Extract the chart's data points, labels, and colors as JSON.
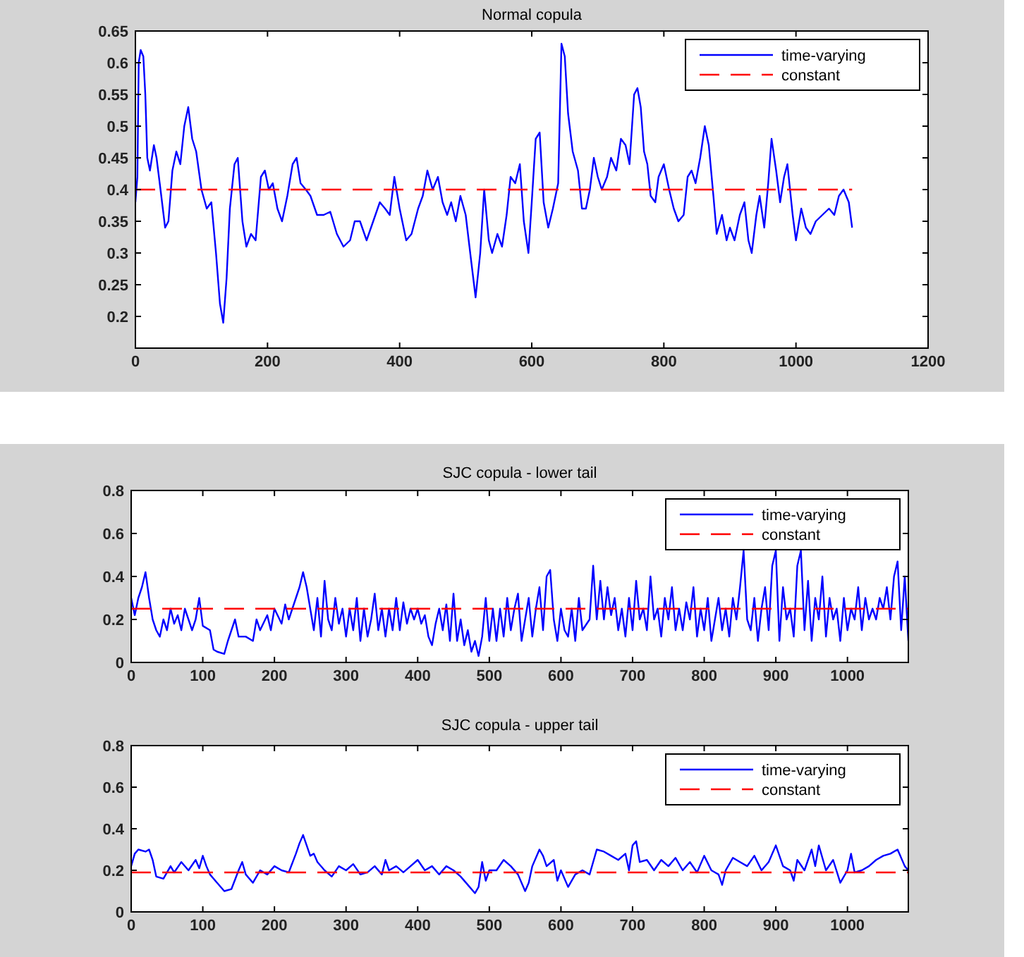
{
  "chart_data": [
    {
      "type": "line",
      "title": "Normal copula",
      "xlim": [
        0,
        1200
      ],
      "xticks": [
        0,
        200,
        400,
        600,
        800,
        1000,
        1200
      ],
      "ylim": [
        0.15,
        0.65
      ],
      "yticks": [
        0.2,
        0.25,
        0.3,
        0.35,
        0.4,
        0.45,
        0.5,
        0.55,
        0.6,
        0.65
      ],
      "legend": "top right",
      "series": [
        {
          "name": "time-varying",
          "color": "#0000ff",
          "line_style": "solid",
          "x": [
            0,
            3,
            5,
            8,
            12,
            15,
            18,
            22,
            28,
            32,
            38,
            45,
            50,
            56,
            62,
            68,
            74,
            80,
            86,
            92,
            100,
            108,
            115,
            122,
            128,
            133,
            138,
            143,
            150,
            155,
            162,
            168,
            175,
            182,
            190,
            196,
            202,
            208,
            215,
            222,
            230,
            238,
            244,
            250,
            258,
            265,
            275,
            285,
            295,
            305,
            315,
            325,
            332,
            340,
            350,
            360,
            370,
            378,
            385,
            392,
            400,
            410,
            418,
            428,
            435,
            442,
            450,
            458,
            465,
            472,
            478,
            485,
            492,
            500,
            508,
            515,
            522,
            528,
            535,
            540,
            548,
            555,
            562,
            568,
            575,
            582,
            588,
            595,
            600,
            606,
            612,
            618,
            625,
            632,
            640,
            645,
            650,
            655,
            662,
            670,
            676,
            682,
            688,
            694,
            700,
            706,
            714,
            720,
            728,
            735,
            742,
            748,
            755,
            760,
            765,
            770,
            775,
            780,
            787,
            792,
            800,
            808,
            815,
            822,
            830,
            836,
            842,
            848,
            855,
            862,
            868,
            875,
            880,
            888,
            895,
            900,
            907,
            915,
            922,
            928,
            933,
            940,
            945,
            952,
            958,
            963,
            970,
            976,
            982,
            987,
            995,
            1000,
            1008,
            1015,
            1022,
            1030,
            1040,
            1050,
            1058,
            1065,
            1072,
            1080,
            1085
          ],
          "values": [
            0.38,
            0.42,
            0.6,
            0.62,
            0.61,
            0.55,
            0.45,
            0.43,
            0.47,
            0.45,
            0.4,
            0.34,
            0.35,
            0.43,
            0.46,
            0.44,
            0.5,
            0.53,
            0.48,
            0.46,
            0.4,
            0.37,
            0.38,
            0.3,
            0.22,
            0.19,
            0.26,
            0.37,
            0.44,
            0.45,
            0.35,
            0.31,
            0.33,
            0.32,
            0.42,
            0.43,
            0.4,
            0.41,
            0.37,
            0.35,
            0.39,
            0.44,
            0.45,
            0.41,
            0.4,
            0.39,
            0.36,
            0.36,
            0.365,
            0.33,
            0.31,
            0.32,
            0.35,
            0.35,
            0.32,
            0.35,
            0.38,
            0.37,
            0.36,
            0.42,
            0.37,
            0.32,
            0.33,
            0.37,
            0.39,
            0.43,
            0.4,
            0.42,
            0.38,
            0.36,
            0.38,
            0.35,
            0.39,
            0.36,
            0.29,
            0.23,
            0.3,
            0.4,
            0.32,
            0.3,
            0.33,
            0.31,
            0.36,
            0.42,
            0.41,
            0.44,
            0.35,
            0.3,
            0.38,
            0.48,
            0.49,
            0.38,
            0.34,
            0.37,
            0.41,
            0.63,
            0.61,
            0.52,
            0.46,
            0.43,
            0.37,
            0.37,
            0.4,
            0.45,
            0.42,
            0.4,
            0.42,
            0.45,
            0.43,
            0.48,
            0.47,
            0.44,
            0.55,
            0.56,
            0.53,
            0.46,
            0.44,
            0.39,
            0.38,
            0.42,
            0.44,
            0.4,
            0.37,
            0.35,
            0.36,
            0.42,
            0.43,
            0.41,
            0.45,
            0.5,
            0.47,
            0.39,
            0.33,
            0.36,
            0.32,
            0.34,
            0.32,
            0.36,
            0.38,
            0.32,
            0.3,
            0.36,
            0.39,
            0.34,
            0.41,
            0.48,
            0.43,
            0.38,
            0.42,
            0.44,
            0.36,
            0.32,
            0.37,
            0.34,
            0.33,
            0.35,
            0.36,
            0.37,
            0.36,
            0.39,
            0.4,
            0.38,
            0.34
          ]
        },
        {
          "name": "constant",
          "color": "#ff0000",
          "line_style": "dashed",
          "x": [
            0,
            1085
          ],
          "values": [
            0.4,
            0.4
          ]
        }
      ]
    },
    {
      "type": "line",
      "title": "SJC copula - lower tail",
      "xlim": [
        0,
        1085
      ],
      "xticks": [
        0,
        100,
        200,
        300,
        400,
        500,
        600,
        700,
        800,
        900,
        1000
      ],
      "ylim": [
        0,
        0.8
      ],
      "yticks": [
        0,
        0.2,
        0.4,
        0.6,
        0.8
      ],
      "legend": "top right",
      "series": [
        {
          "name": "time-varying",
          "color": "#0000ff",
          "line_style": "solid",
          "x": [
            0,
            5,
            10,
            15,
            20,
            25,
            30,
            35,
            40,
            45,
            50,
            55,
            60,
            65,
            70,
            75,
            80,
            85,
            90,
            95,
            100,
            110,
            115,
            120,
            130,
            135,
            140,
            145,
            150,
            160,
            170,
            175,
            180,
            190,
            195,
            200,
            210,
            215,
            220,
            225,
            235,
            240,
            245,
            250,
            255,
            260,
            265,
            270,
            275,
            280,
            285,
            290,
            295,
            300,
            305,
            310,
            315,
            320,
            325,
            330,
            335,
            340,
            345,
            350,
            355,
            360,
            365,
            370,
            375,
            380,
            385,
            390,
            395,
            400,
            405,
            410,
            415,
            420,
            425,
            430,
            435,
            440,
            445,
            450,
            455,
            460,
            465,
            470,
            475,
            480,
            485,
            490,
            495,
            500,
            505,
            510,
            515,
            520,
            525,
            530,
            535,
            540,
            545,
            550,
            555,
            560,
            565,
            570,
            575,
            580,
            585,
            590,
            595,
            600,
            605,
            610,
            615,
            620,
            625,
            630,
            640,
            645,
            650,
            655,
            660,
            665,
            670,
            675,
            680,
            685,
            690,
            695,
            700,
            705,
            710,
            715,
            720,
            725,
            730,
            735,
            740,
            745,
            750,
            755,
            760,
            765,
            770,
            775,
            780,
            785,
            790,
            795,
            800,
            805,
            810,
            815,
            820,
            825,
            830,
            835,
            840,
            845,
            850,
            855,
            860,
            865,
            870,
            875,
            880,
            885,
            890,
            895,
            900,
            905,
            910,
            915,
            920,
            925,
            930,
            935,
            940,
            945,
            950,
            955,
            960,
            965,
            970,
            975,
            980,
            985,
            990,
            995,
            1000,
            1005,
            1010,
            1015,
            1020,
            1025,
            1030,
            1035,
            1040,
            1045,
            1050,
            1055,
            1060,
            1065,
            1070,
            1075,
            1080,
            1085
          ],
          "values": [
            0.3,
            0.22,
            0.3,
            0.35,
            0.42,
            0.3,
            0.2,
            0.15,
            0.12,
            0.2,
            0.15,
            0.25,
            0.18,
            0.22,
            0.15,
            0.25,
            0.2,
            0.15,
            0.2,
            0.3,
            0.17,
            0.15,
            0.06,
            0.05,
            0.04,
            0.1,
            0.15,
            0.2,
            0.12,
            0.12,
            0.1,
            0.2,
            0.15,
            0.22,
            0.15,
            0.25,
            0.18,
            0.27,
            0.2,
            0.25,
            0.35,
            0.42,
            0.35,
            0.25,
            0.15,
            0.3,
            0.12,
            0.38,
            0.2,
            0.15,
            0.3,
            0.18,
            0.25,
            0.12,
            0.25,
            0.15,
            0.3,
            0.1,
            0.25,
            0.12,
            0.2,
            0.32,
            0.15,
            0.25,
            0.12,
            0.25,
            0.15,
            0.3,
            0.15,
            0.28,
            0.18,
            0.25,
            0.2,
            0.25,
            0.18,
            0.22,
            0.12,
            0.08,
            0.18,
            0.25,
            0.15,
            0.27,
            0.1,
            0.32,
            0.1,
            0.2,
            0.08,
            0.15,
            0.05,
            0.1,
            0.03,
            0.12,
            0.3,
            0.1,
            0.25,
            0.1,
            0.25,
            0.12,
            0.3,
            0.15,
            0.25,
            0.32,
            0.1,
            0.2,
            0.3,
            0.12,
            0.25,
            0.35,
            0.15,
            0.4,
            0.43,
            0.2,
            0.1,
            0.25,
            0.15,
            0.12,
            0.25,
            0.1,
            0.3,
            0.15,
            0.2,
            0.45,
            0.2,
            0.38,
            0.2,
            0.35,
            0.22,
            0.3,
            0.15,
            0.25,
            0.12,
            0.3,
            0.15,
            0.38,
            0.2,
            0.25,
            0.15,
            0.4,
            0.2,
            0.25,
            0.12,
            0.3,
            0.2,
            0.35,
            0.15,
            0.25,
            0.15,
            0.28,
            0.2,
            0.35,
            0.12,
            0.25,
            0.15,
            0.3,
            0.1,
            0.2,
            0.3,
            0.15,
            0.25,
            0.12,
            0.3,
            0.2,
            0.35,
            0.52,
            0.2,
            0.15,
            0.3,
            0.1,
            0.25,
            0.35,
            0.15,
            0.45,
            0.52,
            0.1,
            0.35,
            0.2,
            0.25,
            0.12,
            0.45,
            0.52,
            0.15,
            0.38,
            0.1,
            0.3,
            0.2,
            0.4,
            0.12,
            0.3,
            0.2,
            0.25,
            0.1,
            0.3,
            0.15,
            0.25,
            0.2,
            0.35,
            0.15,
            0.3,
            0.2,
            0.25,
            0.2,
            0.3,
            0.25,
            0.35,
            0.2,
            0.4,
            0.47,
            0.15,
            0.4,
            0.1
          ]
        },
        {
          "name": "constant",
          "color": "#ff0000",
          "line_style": "dashed",
          "x": [
            0,
            1085
          ],
          "values": [
            0.25,
            0.25
          ]
        }
      ]
    },
    {
      "type": "line",
      "title": "SJC copula - upper tail",
      "xlim": [
        0,
        1085
      ],
      "xticks": [
        0,
        100,
        200,
        300,
        400,
        500,
        600,
        700,
        800,
        900,
        1000
      ],
      "ylim": [
        0,
        0.8
      ],
      "yticks": [
        0,
        0.2,
        0.4,
        0.6,
        0.8
      ],
      "legend": "top right",
      "series": [
        {
          "name": "time-varying",
          "color": "#0000ff",
          "line_style": "solid",
          "x": [
            0,
            5,
            10,
            20,
            25,
            30,
            35,
            45,
            55,
            60,
            70,
            80,
            90,
            95,
            100,
            105,
            110,
            120,
            130,
            140,
            150,
            155,
            160,
            170,
            180,
            190,
            200,
            210,
            220,
            230,
            235,
            240,
            245,
            250,
            255,
            260,
            270,
            280,
            290,
            300,
            310,
            320,
            330,
            340,
            350,
            355,
            360,
            370,
            380,
            390,
            400,
            410,
            420,
            430,
            440,
            450,
            460,
            470,
            480,
            485,
            490,
            495,
            500,
            510,
            520,
            530,
            540,
            550,
            555,
            560,
            570,
            575,
            580,
            590,
            595,
            600,
            610,
            620,
            630,
            640,
            650,
            660,
            670,
            680,
            690,
            695,
            700,
            705,
            710,
            720,
            730,
            740,
            750,
            760,
            770,
            780,
            790,
            800,
            810,
            820,
            825,
            830,
            840,
            850,
            860,
            870,
            880,
            890,
            900,
            910,
            920,
            925,
            930,
            940,
            950,
            955,
            960,
            970,
            980,
            990,
            1000,
            1005,
            1010,
            1020,
            1030,
            1040,
            1050,
            1060,
            1070,
            1080,
            1085
          ],
          "values": [
            0.22,
            0.28,
            0.3,
            0.29,
            0.3,
            0.25,
            0.17,
            0.16,
            0.22,
            0.19,
            0.24,
            0.2,
            0.25,
            0.21,
            0.27,
            0.22,
            0.18,
            0.14,
            0.1,
            0.11,
            0.2,
            0.24,
            0.18,
            0.14,
            0.2,
            0.18,
            0.22,
            0.2,
            0.19,
            0.28,
            0.33,
            0.37,
            0.32,
            0.27,
            0.28,
            0.24,
            0.2,
            0.17,
            0.22,
            0.2,
            0.23,
            0.18,
            0.19,
            0.22,
            0.18,
            0.25,
            0.2,
            0.22,
            0.19,
            0.22,
            0.25,
            0.2,
            0.22,
            0.18,
            0.22,
            0.2,
            0.17,
            0.13,
            0.09,
            0.12,
            0.24,
            0.15,
            0.2,
            0.2,
            0.25,
            0.22,
            0.18,
            0.1,
            0.14,
            0.22,
            0.3,
            0.27,
            0.22,
            0.25,
            0.15,
            0.2,
            0.12,
            0.18,
            0.2,
            0.18,
            0.3,
            0.29,
            0.27,
            0.25,
            0.28,
            0.2,
            0.32,
            0.34,
            0.24,
            0.25,
            0.2,
            0.25,
            0.22,
            0.26,
            0.2,
            0.24,
            0.19,
            0.27,
            0.2,
            0.18,
            0.13,
            0.2,
            0.26,
            0.24,
            0.22,
            0.27,
            0.2,
            0.24,
            0.32,
            0.22,
            0.2,
            0.15,
            0.25,
            0.2,
            0.3,
            0.22,
            0.32,
            0.2,
            0.25,
            0.14,
            0.2,
            0.28,
            0.19,
            0.2,
            0.22,
            0.25,
            0.27,
            0.28,
            0.3,
            0.22,
            0.2
          ]
        },
        {
          "name": "constant",
          "color": "#ff0000",
          "line_style": "dashed",
          "x": [
            0,
            1085
          ],
          "values": [
            0.19,
            0.19
          ]
        }
      ]
    }
  ]
}
